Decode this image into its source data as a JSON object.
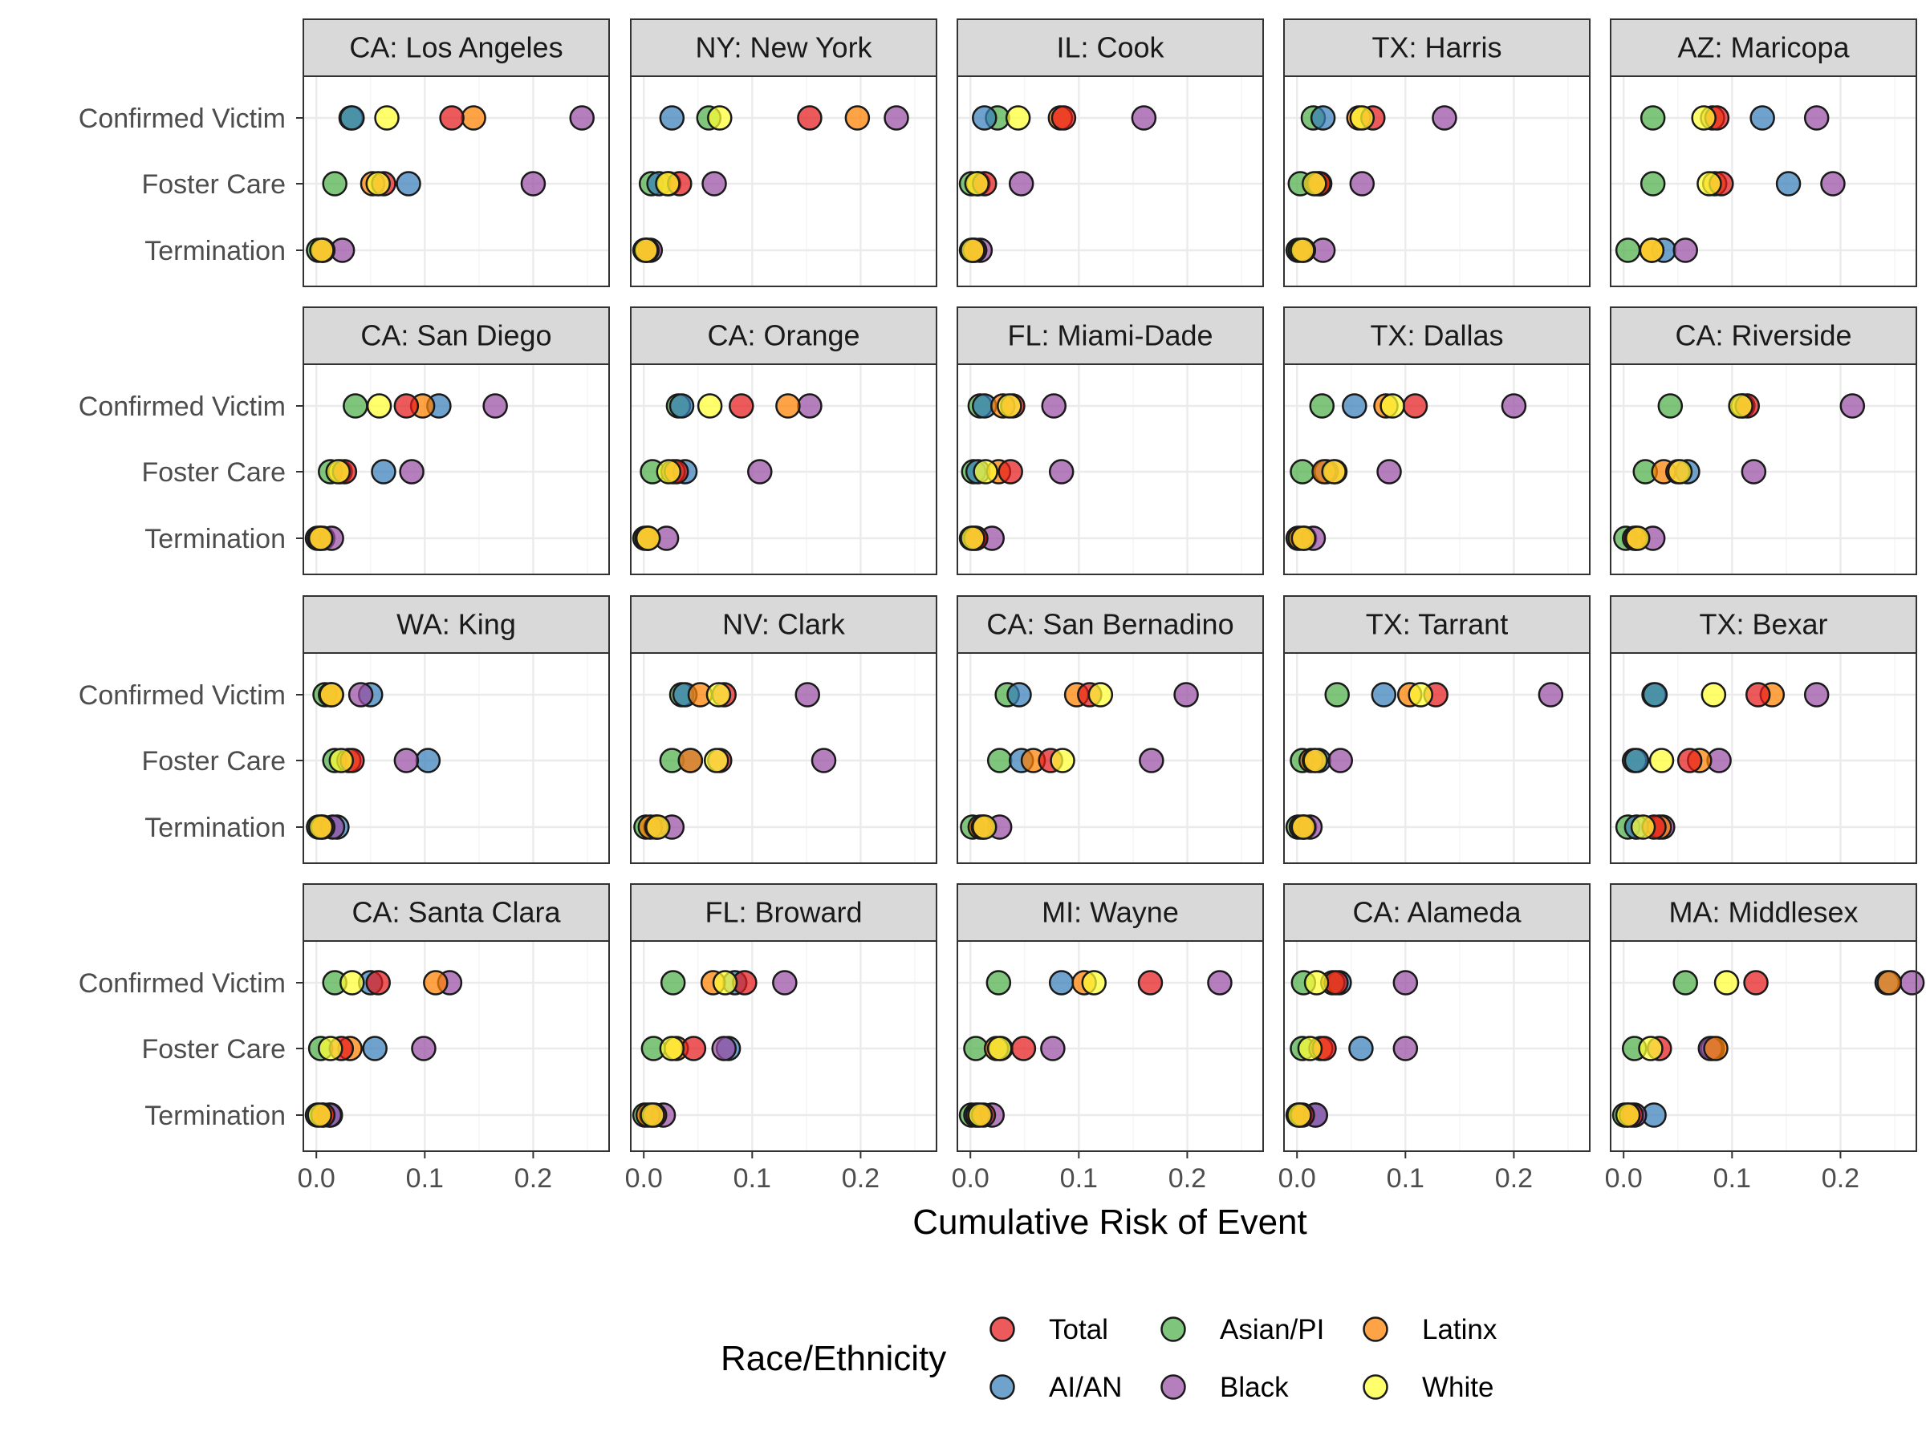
{
  "chart_data": {
    "type": "scatter",
    "xlabel": "Cumulative Risk of Event",
    "xlim": [
      -0.012,
      0.27
    ],
    "x_ticks": [
      "0.0",
      "0.1",
      "0.2"
    ],
    "x_tick_values": [
      0,
      0.1,
      0.2
    ],
    "categories": [
      "Confirmed Victim",
      "Foster Care",
      "Termination"
    ],
    "legend": {
      "title": "Race/Ethnicity",
      "position": "bottom",
      "items": [
        {
          "name": "Total",
          "color": "#e41a1c"
        },
        {
          "name": "AI/AN",
          "color": "#377eb8"
        },
        {
          "name": "Asian/PI",
          "color": "#4daf4a"
        },
        {
          "name": "Black",
          "color": "#984ea3"
        },
        {
          "name": "Latinx",
          "color": "#ff7f00"
        },
        {
          "name": "White",
          "color": "#ffff33"
        }
      ]
    },
    "grid": true,
    "panels": [
      {
        "title": "CA: Los Angeles",
        "values": {
          "Confirmed Victim": {
            "Total": 0.125,
            "AI/AN": 0.033,
            "Asian/PI": 0.032,
            "Black": 0.245,
            "Latinx": 0.145,
            "White": 0.065
          },
          "Foster Care": {
            "Total": 0.062,
            "AI/AN": 0.085,
            "Asian/PI": 0.017,
            "Black": 0.2,
            "Latinx": 0.052,
            "White": 0.057
          },
          "Termination": {
            "Total": 0.006,
            "AI/AN": 0.006,
            "Asian/PI": 0.002,
            "Black": 0.024,
            "Latinx": 0.006,
            "White": 0.005
          }
        }
      },
      {
        "title": "NY: New York",
        "values": {
          "Confirmed Victim": {
            "Total": 0.153,
            "AI/AN": 0.026,
            "Asian/PI": 0.06,
            "Black": 0.233,
            "Latinx": 0.197,
            "White": 0.07
          },
          "Foster Care": {
            "Total": 0.033,
            "AI/AN": 0.014,
            "Asian/PI": 0.007,
            "Black": 0.065,
            "Latinx": 0.023,
            "White": 0.022
          },
          "Termination": {
            "Total": 0.003,
            "AI/AN": 0.002,
            "Asian/PI": 0.001,
            "Black": 0.006,
            "Latinx": 0.003,
            "White": 0.002
          }
        }
      },
      {
        "title": "IL: Cook",
        "values": {
          "Confirmed Victim": {
            "Total": 0.086,
            "AI/AN": 0.013,
            "Asian/PI": 0.025,
            "Black": 0.16,
            "Latinx": 0.083,
            "White": 0.044
          },
          "Foster Care": {
            "Total": 0.013,
            "AI/AN": 0.007,
            "Asian/PI": 0.001,
            "Black": 0.047,
            "Latinx": 0.007,
            "White": 0.006
          },
          "Termination": {
            "Total": 0.004,
            "AI/AN": 0.004,
            "Asian/PI": 0.001,
            "Black": 0.009,
            "Latinx": 0.002,
            "White": 0.002
          }
        }
      },
      {
        "title": "TX: Harris",
        "values": {
          "Confirmed Victim": {
            "Total": 0.07,
            "AI/AN": 0.024,
            "Asian/PI": 0.015,
            "Black": 0.136,
            "Latinx": 0.057,
            "White": 0.06
          },
          "Foster Care": {
            "Total": 0.02,
            "AI/AN": 0.018,
            "Asian/PI": 0.003,
            "Black": 0.06,
            "Latinx": 0.021,
            "White": 0.016
          },
          "Termination": {
            "Total": 0.006,
            "AI/AN": 0.006,
            "Asian/PI": 0.001,
            "Black": 0.024,
            "Latinx": 0.003,
            "White": 0.005
          }
        }
      },
      {
        "title": "AZ: Maricopa",
        "values": {
          "Confirmed Victim": {
            "Total": 0.086,
            "AI/AN": 0.128,
            "Asian/PI": 0.027,
            "Black": 0.178,
            "Latinx": 0.082,
            "White": 0.074
          },
          "Foster Care": {
            "Total": 0.09,
            "AI/AN": 0.152,
            "Asian/PI": 0.027,
            "Black": 0.193,
            "Latinx": 0.084,
            "White": 0.079
          },
          "Termination": {
            "Total": 0.026,
            "AI/AN": 0.037,
            "Asian/PI": 0.004,
            "Black": 0.057,
            "Latinx": 0.026,
            "White": 0.026
          }
        }
      },
      {
        "title": "CA: San Diego",
        "values": {
          "Confirmed Victim": {
            "Total": 0.083,
            "AI/AN": 0.113,
            "Asian/PI": 0.036,
            "Black": 0.165,
            "Latinx": 0.098,
            "White": 0.058
          },
          "Foster Care": {
            "Total": 0.026,
            "AI/AN": 0.062,
            "Asian/PI": 0.013,
            "Black": 0.088,
            "Latinx": 0.022,
            "White": 0.02
          },
          "Termination": {
            "Total": 0.004,
            "AI/AN": 0.006,
            "Asian/PI": 0.001,
            "Black": 0.014,
            "Latinx": 0.003,
            "White": 0.004
          }
        }
      },
      {
        "title": "CA: Orange",
        "values": {
          "Confirmed Victim": {
            "Total": 0.09,
            "AI/AN": 0.035,
            "Asian/PI": 0.032,
            "Black": 0.153,
            "Latinx": 0.133,
            "White": 0.061
          },
          "Foster Care": {
            "Total": 0.03,
            "AI/AN": 0.038,
            "Asian/PI": 0.008,
            "Black": 0.107,
            "Latinx": 0.027,
            "White": 0.023
          },
          "Termination": {
            "Total": 0.004,
            "AI/AN": 0.003,
            "Asian/PI": 0.001,
            "Black": 0.021,
            "Latinx": 0.004,
            "White": 0.004
          }
        }
      },
      {
        "title": "FL: Miami-Dade",
        "values": {
          "Confirmed Victim": {
            "Total": 0.039,
            "AI/AN": 0.013,
            "Asian/PI": 0.009,
            "Black": 0.077,
            "Latinx": 0.03,
            "White": 0.036
          },
          "Foster Care": {
            "Total": 0.037,
            "AI/AN": 0.007,
            "Asian/PI": 0.003,
            "Black": 0.084,
            "Latinx": 0.026,
            "White": 0.014
          },
          "Termination": {
            "Total": 0.005,
            "AI/AN": 0.005,
            "Asian/PI": 0.001,
            "Black": 0.02,
            "Latinx": 0.003,
            "White": 0.002
          }
        }
      },
      {
        "title": "TX: Dallas",
        "values": {
          "Confirmed Victim": {
            "Total": 0.109,
            "AI/AN": 0.053,
            "Asian/PI": 0.023,
            "Black": 0.2,
            "Latinx": 0.082,
            "White": 0.088
          },
          "Foster Care": {
            "Total": 0.035,
            "AI/AN": 0.027,
            "Asian/PI": 0.005,
            "Black": 0.085,
            "Latinx": 0.025,
            "White": 0.034
          },
          "Termination": {
            "Total": 0.006,
            "AI/AN": 0.007,
            "Asian/PI": 0.001,
            "Black": 0.015,
            "Latinx": 0.003,
            "White": 0.006
          }
        }
      },
      {
        "title": "CA: Riverside",
        "values": {
          "Confirmed Victim": {
            "Total": 0.114,
            "AI/AN": 0.11,
            "Asian/PI": 0.043,
            "Black": 0.211,
            "Latinx": 0.11,
            "White": 0.108
          },
          "Foster Care": {
            "Total": 0.05,
            "AI/AN": 0.059,
            "Asian/PI": 0.02,
            "Black": 0.12,
            "Latinx": 0.037,
            "White": 0.052
          },
          "Termination": {
            "Total": 0.012,
            "AI/AN": 0.011,
            "Asian/PI": 0.002,
            "Black": 0.027,
            "Latinx": 0.01,
            "White": 0.013
          }
        }
      },
      {
        "title": "WA: King",
        "values": {
          "Confirmed Victim": {
            "Total": 0.014,
            "AI/AN": 0.05,
            "Asian/PI": 0.008,
            "Black": 0.041,
            "Latinx": 0.013,
            "White": 0.014
          },
          "Foster Care": {
            "Total": 0.033,
            "AI/AN": 0.103,
            "Asian/PI": 0.017,
            "Black": 0.083,
            "Latinx": 0.03,
            "White": 0.023
          },
          "Termination": {
            "Total": 0.006,
            "AI/AN": 0.019,
            "Asian/PI": 0.002,
            "Black": 0.015,
            "Latinx": 0.005,
            "White": 0.004
          }
        }
      },
      {
        "title": "NV: Clark",
        "values": {
          "Confirmed Victim": {
            "Total": 0.074,
            "AI/AN": 0.038,
            "Asian/PI": 0.035,
            "Black": 0.151,
            "Latinx": 0.052,
            "White": 0.069
          },
          "Foster Care": {
            "Total": 0.07,
            "AI/AN": 0.043,
            "Asian/PI": 0.026,
            "Black": 0.166,
            "Latinx": 0.043,
            "White": 0.067
          },
          "Termination": {
            "Total": 0.012,
            "AI/AN": 0.011,
            "Asian/PI": 0.002,
            "Black": 0.026,
            "Latinx": 0.006,
            "White": 0.013
          }
        }
      },
      {
        "title": "CA: San Bernadino",
        "values": {
          "Confirmed Victim": {
            "Total": 0.11,
            "AI/AN": 0.045,
            "Asian/PI": 0.034,
            "Black": 0.199,
            "Latinx": 0.098,
            "White": 0.12
          },
          "Foster Care": {
            "Total": 0.074,
            "AI/AN": 0.047,
            "Asian/PI": 0.027,
            "Black": 0.167,
            "Latinx": 0.058,
            "White": 0.085
          },
          "Termination": {
            "Total": 0.012,
            "AI/AN": 0.011,
            "Asian/PI": 0.002,
            "Black": 0.027,
            "Latinx": 0.009,
            "White": 0.013
          }
        }
      },
      {
        "title": "TX: Tarrant",
        "values": {
          "Confirmed Victim": {
            "Total": 0.128,
            "AI/AN": 0.08,
            "Asian/PI": 0.037,
            "Black": 0.234,
            "Latinx": 0.104,
            "White": 0.114
          },
          "Foster Care": {
            "Total": 0.016,
            "AI/AN": 0.02,
            "Asian/PI": 0.005,
            "Black": 0.04,
            "Latinx": 0.013,
            "White": 0.017
          },
          "Termination": {
            "Total": 0.006,
            "AI/AN": 0.007,
            "Asian/PI": 0.001,
            "Black": 0.012,
            "Latinx": 0.004,
            "White": 0.006
          }
        }
      },
      {
        "title": "TX: Bexar",
        "values": {
          "Confirmed Victim": {
            "Total": 0.124,
            "AI/AN": 0.029,
            "Asian/PI": 0.028,
            "Black": 0.178,
            "Latinx": 0.137,
            "White": 0.083
          },
          "Foster Care": {
            "Total": 0.061,
            "AI/AN": 0.012,
            "Asian/PI": 0.01,
            "Black": 0.088,
            "Latinx": 0.07,
            "White": 0.035
          },
          "Termination": {
            "Total": 0.028,
            "AI/AN": 0.012,
            "Asian/PI": 0.004,
            "Black": 0.036,
            "Latinx": 0.033,
            "White": 0.018
          }
        }
      },
      {
        "title": "CA: Santa Clara",
        "values": {
          "Confirmed Victim": {
            "Total": 0.057,
            "AI/AN": 0.05,
            "Asian/PI": 0.017,
            "Black": 0.123,
            "Latinx": 0.11,
            "White": 0.033
          },
          "Foster Care": {
            "Total": 0.023,
            "AI/AN": 0.054,
            "Asian/PI": 0.004,
            "Black": 0.099,
            "Latinx": 0.031,
            "White": 0.013
          },
          "Termination": {
            "Total": 0.006,
            "AI/AN": 0.013,
            "Asian/PI": 0.001,
            "Black": 0.012,
            "Latinx": 0.006,
            "White": 0.003
          }
        }
      },
      {
        "title": "FL: Broward",
        "values": {
          "Confirmed Victim": {
            "Total": 0.093,
            "AI/AN": 0.084,
            "Asian/PI": 0.027,
            "Black": 0.13,
            "Latinx": 0.064,
            "White": 0.075
          },
          "Foster Care": {
            "Total": 0.046,
            "AI/AN": 0.078,
            "Asian/PI": 0.009,
            "Black": 0.074,
            "Latinx": 0.03,
            "White": 0.026
          },
          "Termination": {
            "Total": 0.01,
            "AI/AN": 0.007,
            "Asian/PI": 0.001,
            "Black": 0.018,
            "Latinx": 0.004,
            "White": 0.008
          }
        }
      },
      {
        "title": "MI: Wayne",
        "values": {
          "Confirmed Victim": {
            "Total": 0.166,
            "AI/AN": 0.084,
            "Asian/PI": 0.026,
            "Black": 0.23,
            "Latinx": 0.105,
            "White": 0.114
          },
          "Foster Care": {
            "Total": 0.049,
            "AI/AN": 0.028,
            "Asian/PI": 0.005,
            "Black": 0.076,
            "Latinx": 0.024,
            "White": 0.027
          },
          "Termination": {
            "Total": 0.012,
            "AI/AN": 0.005,
            "Asian/PI": 0.001,
            "Black": 0.02,
            "Latinx": 0.007,
            "White": 0.009
          }
        }
      },
      {
        "title": "CA: Alameda",
        "values": {
          "Confirmed Victim": {
            "Total": 0.036,
            "AI/AN": 0.039,
            "Asian/PI": 0.006,
            "Black": 0.1,
            "Latinx": 0.033,
            "White": 0.018
          },
          "Foster Care": {
            "Total": 0.025,
            "AI/AN": 0.059,
            "Asian/PI": 0.005,
            "Black": 0.1,
            "Latinx": 0.022,
            "White": 0.012
          },
          "Termination": {
            "Total": 0.005,
            "AI/AN": 0.017,
            "Asian/PI": 0.001,
            "Black": 0.017,
            "Latinx": 0.003,
            "White": 0.002
          }
        }
      },
      {
        "title": "MA: Middlesex",
        "values": {
          "Confirmed Victim": {
            "Total": 0.122,
            "AI/AN": 0.243,
            "Asian/PI": 0.057,
            "Black": 0.266,
            "Latinx": 0.245,
            "White": 0.095
          },
          "Foster Care": {
            "Total": 0.033,
            "AI/AN": 0.082,
            "Asian/PI": 0.01,
            "Black": 0.08,
            "Latinx": 0.085,
            "White": 0.025
          },
          "Termination": {
            "Total": 0.007,
            "AI/AN": 0.028,
            "Asian/PI": 0.001,
            "Black": 0.01,
            "Latinx": 0.004,
            "White": 0.004
          }
        }
      }
    ]
  }
}
